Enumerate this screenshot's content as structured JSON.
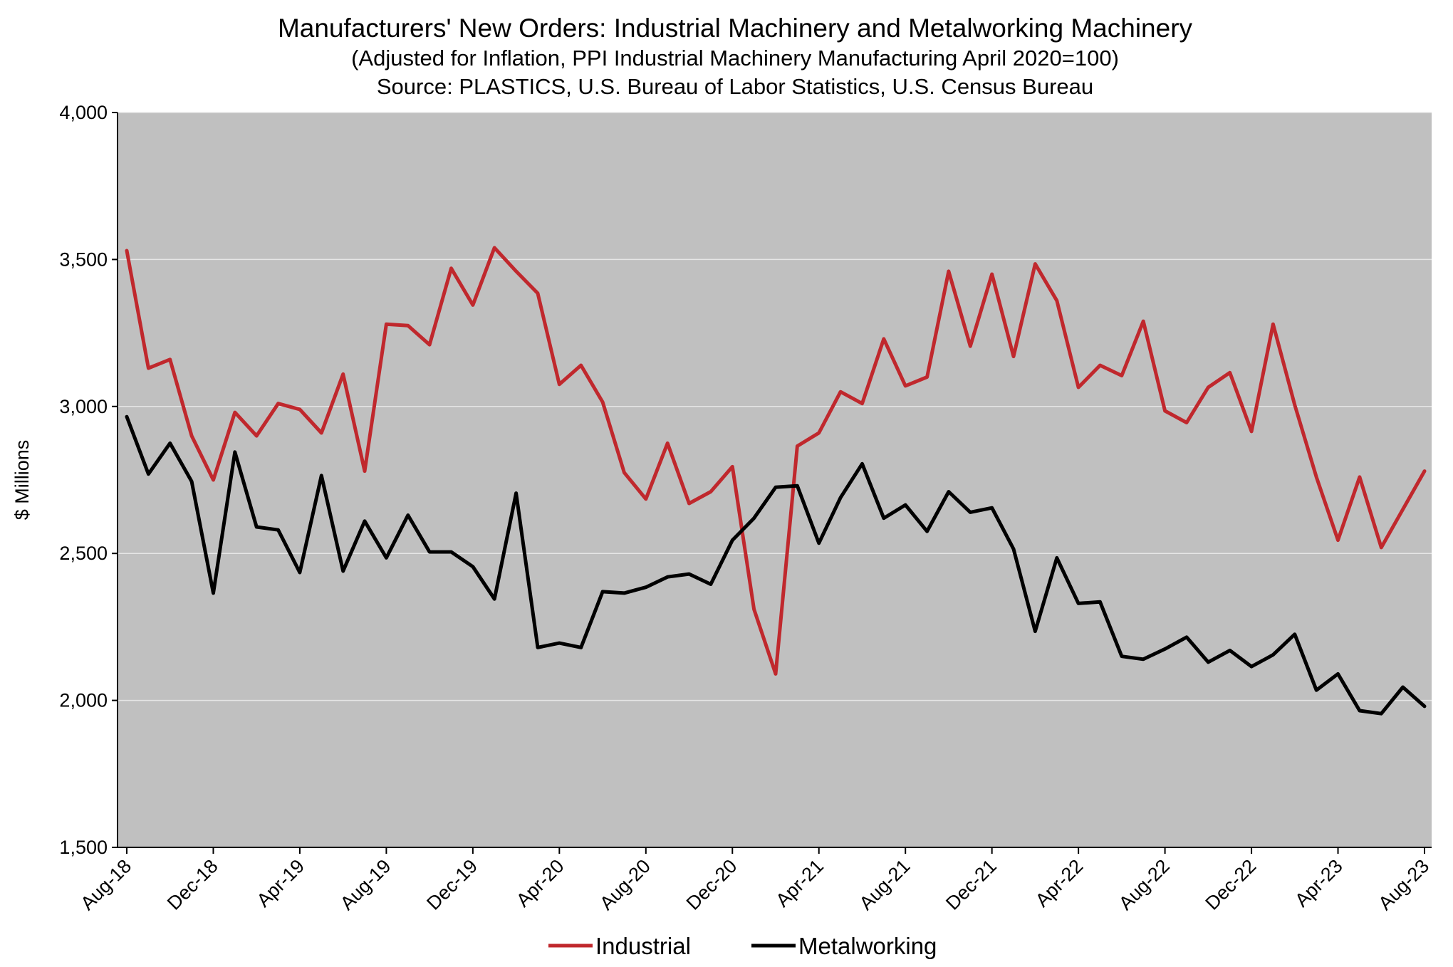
{
  "chart_data": {
    "type": "line",
    "title": "Manufacturers' New Orders: Industrial Machinery and Metalworking Machinery",
    "subtitle": "(Adjusted for Inflation, PPI Industrial Machinery Manufacturing April 2020=100)",
    "source": "Source: PLASTICS, U.S. Bureau of Labor Statistics, U.S. Census Bureau",
    "ylabel": "$ Millions",
    "xlabel": "",
    "ylim": [
      1500,
      4000
    ],
    "yticks": [
      1500,
      2000,
      2500,
      3000,
      3500,
      4000
    ],
    "ytick_labels": [
      "1,500",
      "2,000",
      "2,500",
      "3,000",
      "3,500",
      "4,000"
    ],
    "x_start": "Aug-18",
    "x_end": "Sep-23",
    "xtick_labels": [
      "Aug-18",
      "Dec-18",
      "Apr-19",
      "Aug-19",
      "Dec-19",
      "Apr-20",
      "Aug-20",
      "Dec-20",
      "Apr-21",
      "Aug-21",
      "Dec-21",
      "Apr-22",
      "Aug-22",
      "Dec-22",
      "Apr-23",
      "Aug-23"
    ],
    "grid": true,
    "legend": "bottom",
    "plot_background": "#c0c0c0",
    "series": [
      {
        "name": "Industrial",
        "color": "#c0282d",
        "values": [
          3530,
          3130,
          3160,
          2900,
          2750,
          2980,
          2900,
          3010,
          2990,
          2910,
          3110,
          2780,
          3280,
          3275,
          3210,
          3470,
          3345,
          3540,
          3460,
          3385,
          3075,
          3140,
          3015,
          2775,
          2685,
          2875,
          2670,
          2710,
          2795,
          2310,
          2090,
          2865,
          2910,
          3050,
          3010,
          3230,
          3070,
          3100,
          3460,
          3205,
          3450,
          3170,
          3485,
          3360,
          3065,
          3140,
          3105,
          3290,
          2985,
          2945,
          3065,
          3115,
          2915,
          3280,
          3005,
          2760,
          2545,
          2760,
          2520,
          2650,
          2780
        ]
      },
      {
        "name": "Metalworking",
        "color": "#000000",
        "values": [
          2965,
          2770,
          2875,
          2745,
          2365,
          2845,
          2590,
          2580,
          2435,
          2765,
          2440,
          2610,
          2485,
          2630,
          2505,
          2505,
          2455,
          2345,
          2705,
          2180,
          2195,
          2180,
          2370,
          2365,
          2385,
          2420,
          2430,
          2395,
          2545,
          2620,
          2725,
          2730,
          2535,
          2690,
          2805,
          2620,
          2665,
          2575,
          2710,
          2640,
          2655,
          2515,
          2235,
          2485,
          2330,
          2335,
          2150,
          2140,
          2175,
          2215,
          2130,
          2170,
          2115,
          2155,
          2225,
          2035,
          2090,
          1965,
          1955,
          2045,
          1980
        ]
      }
    ]
  }
}
